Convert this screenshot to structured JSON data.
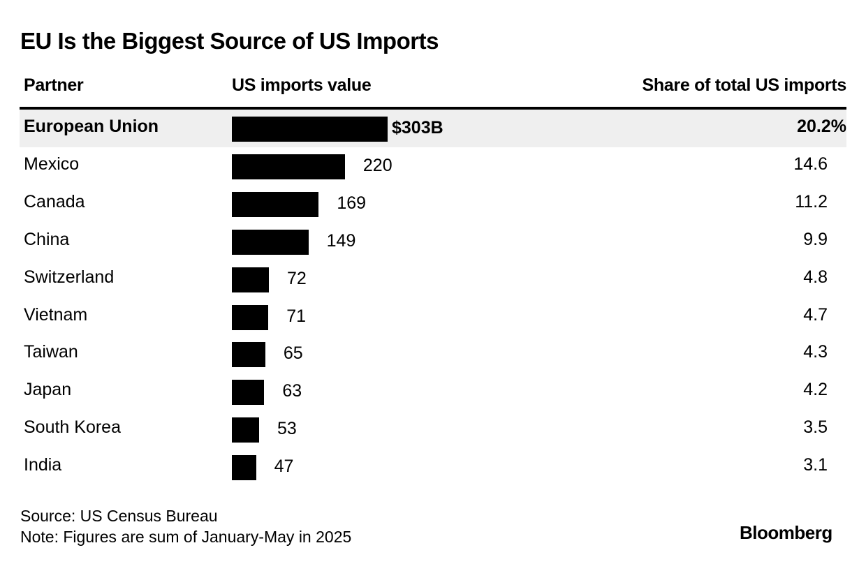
{
  "chart_data": {
    "type": "bar",
    "title": "EU Is the Biggest Source of US Imports",
    "columns": {
      "partner": "Partner",
      "value": "US imports value",
      "share": "Share of total US imports"
    },
    "categories": [
      "European Union",
      "Mexico",
      "Canada",
      "China",
      "Switzerland",
      "Vietnam",
      "Taiwan",
      "Japan",
      "South Korea",
      "India"
    ],
    "values": [
      303,
      220,
      169,
      149,
      72,
      71,
      65,
      63,
      53,
      47
    ],
    "value_labels": [
      "$303B",
      "220",
      "169",
      "149",
      "72",
      "71",
      "65",
      "63",
      "53",
      "47"
    ],
    "shares": [
      "20.2%",
      "14.6",
      "11.2",
      "9.9",
      "4.8",
      "4.7",
      "4.3",
      "4.2",
      "3.5",
      "3.1"
    ],
    "unit": "billion USD",
    "highlighted": "European Union",
    "bar_color": "#000000",
    "highlight_color": "#efefef"
  },
  "footer": {
    "source": "Source: US Census Bureau",
    "note": "Note: Figures are sum of January-May in 2025",
    "logo": "Bloomberg"
  }
}
